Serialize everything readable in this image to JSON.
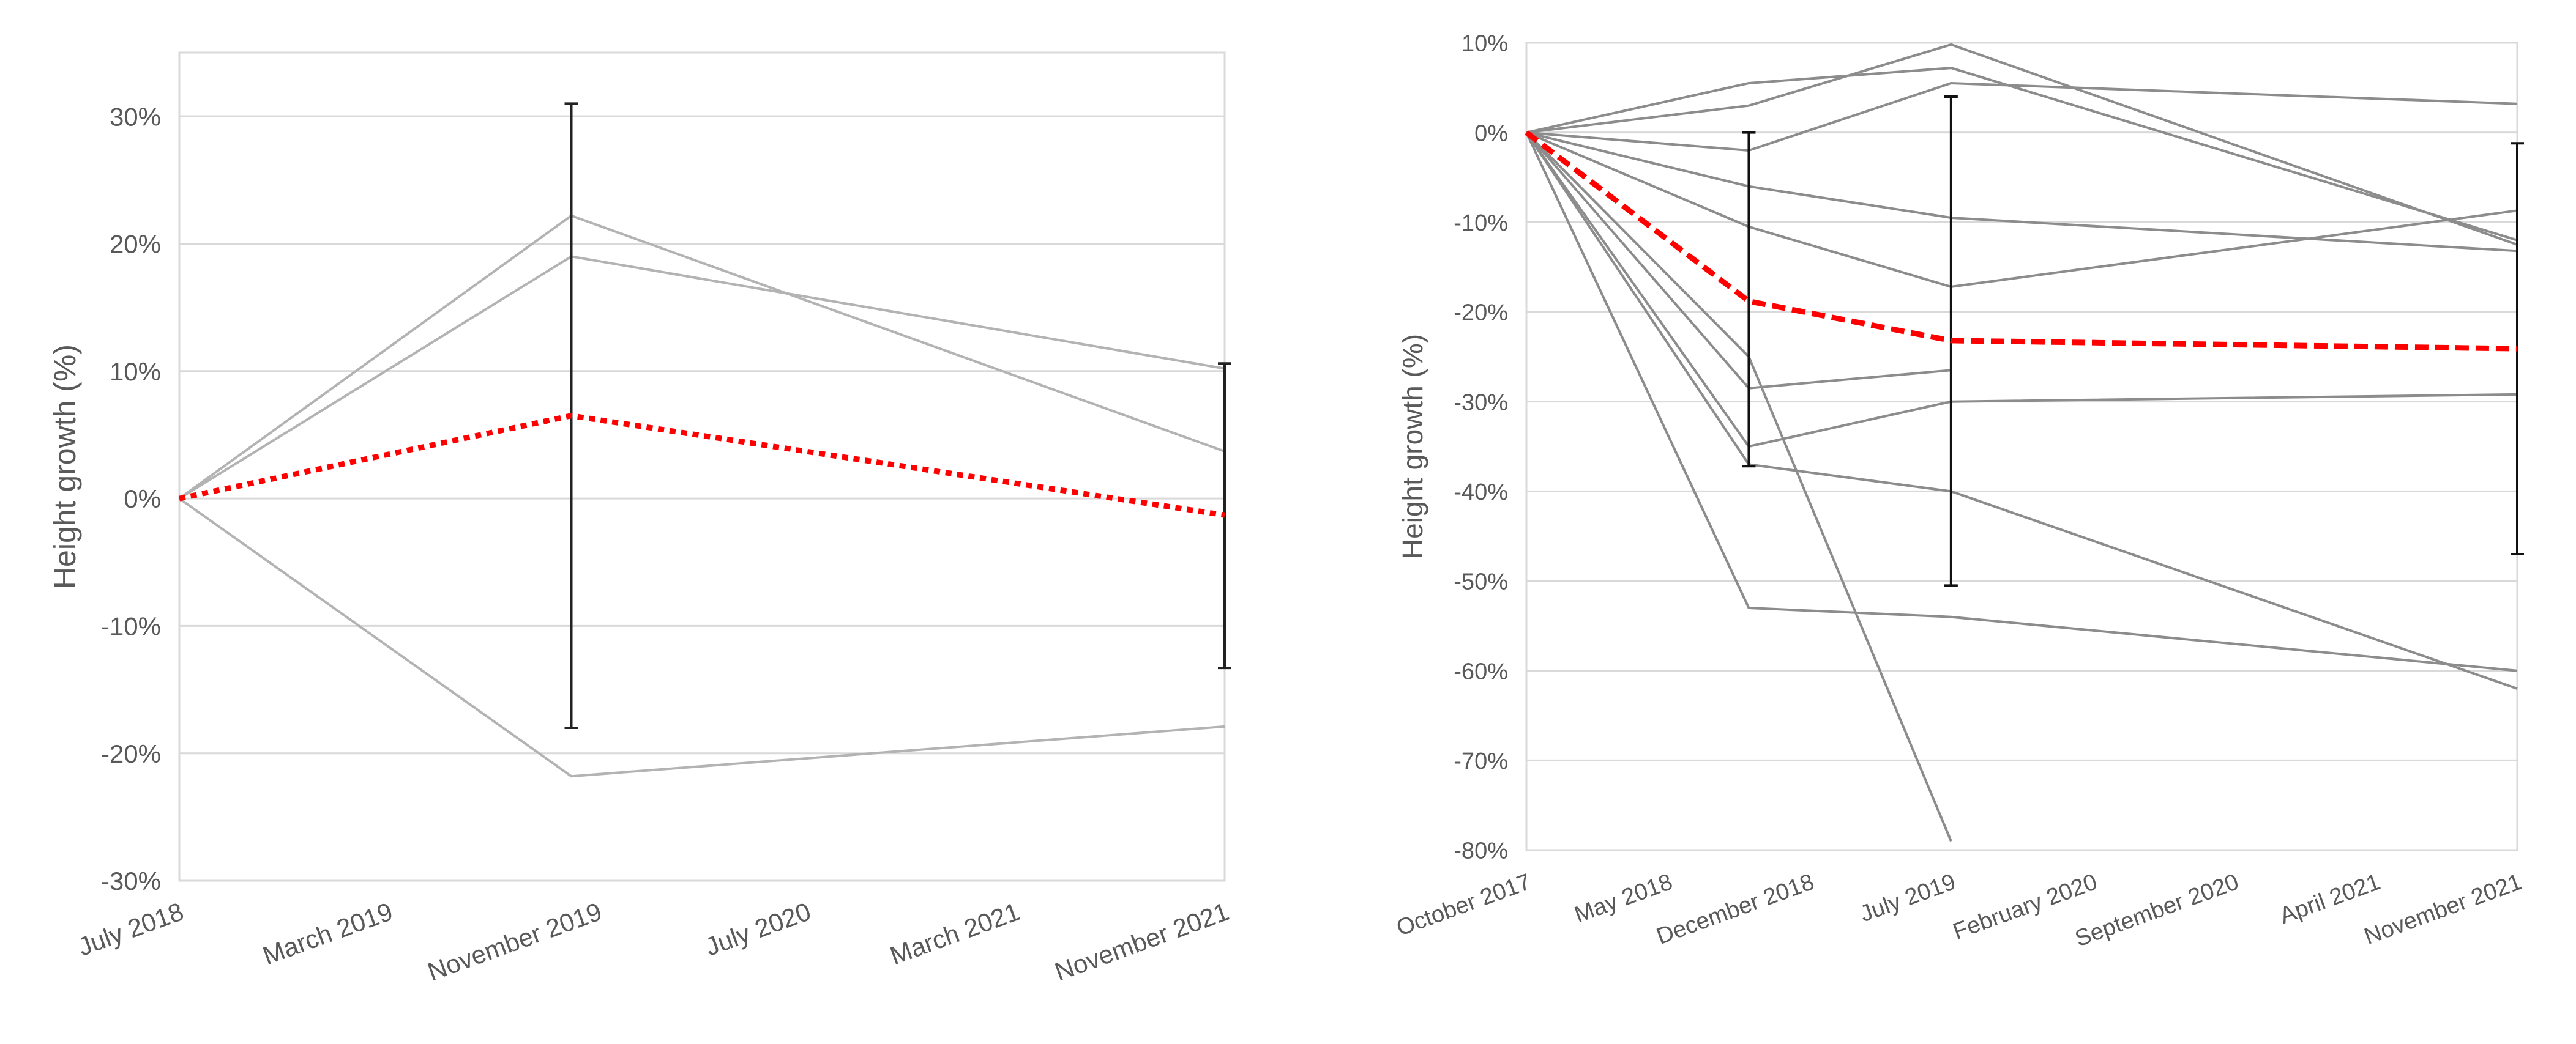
{
  "chart_data": [
    {
      "type": "line",
      "ylabel": "Height growth (%)",
      "xlabel": "",
      "title": "",
      "x_ticks": [
        "July 2018",
        "March 2019",
        "November 2019",
        "July 2020",
        "March 2021",
        "November 2021"
      ],
      "x_range": [
        "2018-07",
        "2021-11"
      ],
      "ylim": [
        -30,
        35
      ],
      "y_ticks": [
        -30,
        -20,
        -10,
        0,
        10,
        20,
        30
      ],
      "y_tick_labels": [
        "-30%",
        "-20%",
        "-10%",
        "0%",
        "10%",
        "20%",
        "30%"
      ],
      "grid": true,
      "legend": "none",
      "colors": {
        "individual": "#b3b3b3",
        "mean": "#ff0000",
        "error_bar": "#222222",
        "grid": "#d9d9d9"
      },
      "series": [
        {
          "role": "individual",
          "points": [
            [
              "2018-07",
              0
            ],
            [
              "2019-10",
              22.2
            ],
            [
              "2021-11",
              3.7
            ]
          ]
        },
        {
          "role": "individual",
          "points": [
            [
              "2018-07",
              0
            ],
            [
              "2019-10",
              19.0
            ],
            [
              "2021-11",
              10.2
            ]
          ]
        },
        {
          "role": "individual",
          "points": [
            [
              "2018-07",
              0
            ],
            [
              "2019-10",
              -21.8
            ],
            [
              "2021-11",
              -17.9
            ]
          ]
        },
        {
          "role": "mean",
          "style": "dotted",
          "points": [
            [
              "2018-07",
              0
            ],
            [
              "2019-10",
              6.5
            ],
            [
              "2021-11",
              -1.3
            ]
          ]
        }
      ],
      "error_bars": [
        {
          "x": "2019-10",
          "low": -18.0,
          "high": 31.0
        },
        {
          "x": "2021-11",
          "low": -13.3,
          "high": 10.6
        }
      ]
    },
    {
      "type": "line",
      "ylabel": "Height growth (%)",
      "xlabel": "",
      "title": "",
      "x_ticks": [
        "October 2017",
        "May 2018",
        "December 2018",
        "July 2019",
        "February 2020",
        "September 2020",
        "April 2021",
        "November 2021"
      ],
      "x_range": [
        "2017-10",
        "2021-11"
      ],
      "ylim": [
        -80,
        10
      ],
      "y_ticks": [
        -80,
        -70,
        -60,
        -50,
        -40,
        -30,
        -20,
        -10,
        0,
        10
      ],
      "y_tick_labels": [
        "-80%",
        "-70%",
        "-60%",
        "-50%",
        "-40%",
        "-30%",
        "-20%",
        "-10%",
        "0%",
        "10%"
      ],
      "grid": true,
      "legend": "none",
      "colors": {
        "individual": "#8c8c8c",
        "mean": "#ff0000",
        "error_bar": "#111111",
        "grid": "#d9d9d9"
      },
      "series": [
        {
          "role": "individual",
          "points": [
            [
              "2017-10",
              0
            ],
            [
              "2018-09",
              5.5
            ],
            [
              "2019-07",
              7.2
            ],
            [
              "2021-11",
              -12.0
            ]
          ]
        },
        {
          "role": "individual",
          "points": [
            [
              "2017-10",
              0
            ],
            [
              "2018-09",
              3.0
            ],
            [
              "2019-07",
              9.8
            ],
            [
              "2021-11",
              -12.5
            ]
          ]
        },
        {
          "role": "individual",
          "points": [
            [
              "2017-10",
              0
            ],
            [
              "2018-09",
              -2.0
            ],
            [
              "2019-07",
              5.5
            ],
            [
              "2021-11",
              3.2
            ]
          ]
        },
        {
          "role": "individual",
          "points": [
            [
              "2017-10",
              0
            ],
            [
              "2018-09",
              -6.0
            ],
            [
              "2019-07",
              -9.5
            ],
            [
              "2021-11",
              -13.2
            ]
          ]
        },
        {
          "role": "individual",
          "points": [
            [
              "2017-10",
              0
            ],
            [
              "2018-09",
              -10.5
            ],
            [
              "2019-07",
              -17.2
            ],
            [
              "2021-11",
              -8.7
            ]
          ]
        },
        {
          "role": "individual",
          "points": [
            [
              "2017-10",
              0
            ],
            [
              "2018-09",
              -28.5
            ],
            [
              "2019-07",
              -26.5
            ]
          ]
        },
        {
          "role": "individual",
          "points": [
            [
              "2017-10",
              0
            ],
            [
              "2018-09",
              -35.0
            ],
            [
              "2019-07",
              -30.0
            ],
            [
              "2021-11",
              -29.2
            ]
          ]
        },
        {
          "role": "individual",
          "points": [
            [
              "2017-10",
              0
            ],
            [
              "2018-09",
              -37.0
            ],
            [
              "2019-07",
              -40.0
            ],
            [
              "2021-11",
              -62.0
            ]
          ]
        },
        {
          "role": "individual",
          "points": [
            [
              "2017-10",
              0
            ],
            [
              "2018-09",
              -53.0
            ],
            [
              "2019-07",
              -54.0
            ],
            [
              "2021-11",
              -60.0
            ]
          ]
        },
        {
          "role": "individual",
          "points": [
            [
              "2017-10",
              0
            ],
            [
              "2018-09",
              -25.0
            ],
            [
              "2019-07",
              -79.0
            ]
          ]
        },
        {
          "role": "mean",
          "style": "dashed",
          "points": [
            [
              "2017-10",
              0
            ],
            [
              "2018-09",
              -18.8
            ],
            [
              "2019-07",
              -23.2
            ],
            [
              "2021-11",
              -24.1
            ]
          ]
        }
      ],
      "error_bars": [
        {
          "x": "2018-09",
          "low": -37.2,
          "high": 0.0
        },
        {
          "x": "2019-07",
          "low": -50.5,
          "high": 4.0
        },
        {
          "x": "2021-11",
          "low": -47.0,
          "high": -1.2
        }
      ]
    }
  ]
}
